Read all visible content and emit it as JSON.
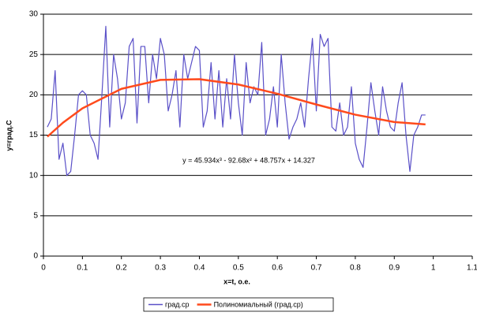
{
  "chart_data": {
    "type": "line",
    "xlabel": "x=t, о.е.",
    "ylabel": "y=град.C",
    "annotation": "y = 45.934x³ - 92.68x² + 48.757x + 14.327",
    "xlim": [
      0,
      1.1
    ],
    "xticks": [
      0,
      0.1,
      0.2,
      0.3,
      0.4,
      0.5,
      0.6,
      0.7,
      0.8,
      0.9,
      1,
      1.1
    ],
    "ylim": [
      0,
      30
    ],
    "yticks": [
      0,
      5,
      10,
      15,
      20,
      25,
      30
    ],
    "grid": true,
    "series": [
      {
        "name": "град.ср",
        "color": "#5a50c8",
        "x": [
          0.01,
          0.02,
          0.03,
          0.04,
          0.05,
          0.06,
          0.07,
          0.08,
          0.09,
          0.1,
          0.11,
          0.12,
          0.13,
          0.14,
          0.15,
          0.16,
          0.17,
          0.18,
          0.19,
          0.2,
          0.21,
          0.22,
          0.23,
          0.24,
          0.25,
          0.26,
          0.27,
          0.28,
          0.29,
          0.3,
          0.31,
          0.32,
          0.33,
          0.34,
          0.35,
          0.36,
          0.37,
          0.38,
          0.39,
          0.4,
          0.41,
          0.42,
          0.43,
          0.44,
          0.45,
          0.46,
          0.47,
          0.48,
          0.49,
          0.5,
          0.51,
          0.52,
          0.53,
          0.54,
          0.55,
          0.56,
          0.57,
          0.58,
          0.59,
          0.6,
          0.61,
          0.62,
          0.63,
          0.64,
          0.65,
          0.66,
          0.67,
          0.68,
          0.69,
          0.7,
          0.71,
          0.72,
          0.73,
          0.74,
          0.75,
          0.76,
          0.77,
          0.78,
          0.79,
          0.8,
          0.81,
          0.82,
          0.83,
          0.84,
          0.85,
          0.86,
          0.87,
          0.88,
          0.89,
          0.9,
          0.91,
          0.92,
          0.93,
          0.94,
          0.95,
          0.96,
          0.97,
          0.98
        ],
        "values": [
          16,
          17,
          23,
          12,
          14,
          10,
          10.5,
          15,
          20,
          20.5,
          20,
          15,
          14,
          12,
          20,
          28.5,
          16,
          25,
          22,
          17,
          19,
          26,
          27,
          16.5,
          26,
          26,
          19,
          25,
          22,
          27,
          25,
          18,
          20,
          23,
          16,
          25,
          22,
          24,
          26,
          25.5,
          16,
          18,
          24,
          17,
          23,
          16,
          22,
          17,
          25,
          19,
          15,
          24,
          19,
          21,
          20,
          26.5,
          15,
          17,
          21,
          16,
          25,
          19,
          14.5,
          16,
          17,
          19,
          16,
          22,
          27,
          18,
          27.5,
          26,
          27,
          16,
          15.5,
          19,
          15,
          16,
          21,
          14,
          12,
          11,
          16,
          21.5,
          18,
          15,
          21,
          18,
          16,
          15.5,
          19,
          21.5,
          15,
          10.5,
          15,
          16,
          17.5,
          17.5
        ]
      },
      {
        "name": "Полиномиальный (град.ср)",
        "color": "#ff4a1c",
        "x": [
          0.01,
          0.05,
          0.1,
          0.2,
          0.3,
          0.4,
          0.5,
          0.6,
          0.7,
          0.8,
          0.9,
          0.98
        ],
        "values": [
          14.805,
          16.539,
          18.322,
          20.739,
          21.853,
          21.941,
          21.277,
          20.138,
          18.799,
          17.536,
          16.623,
          16.333
        ]
      }
    ]
  }
}
